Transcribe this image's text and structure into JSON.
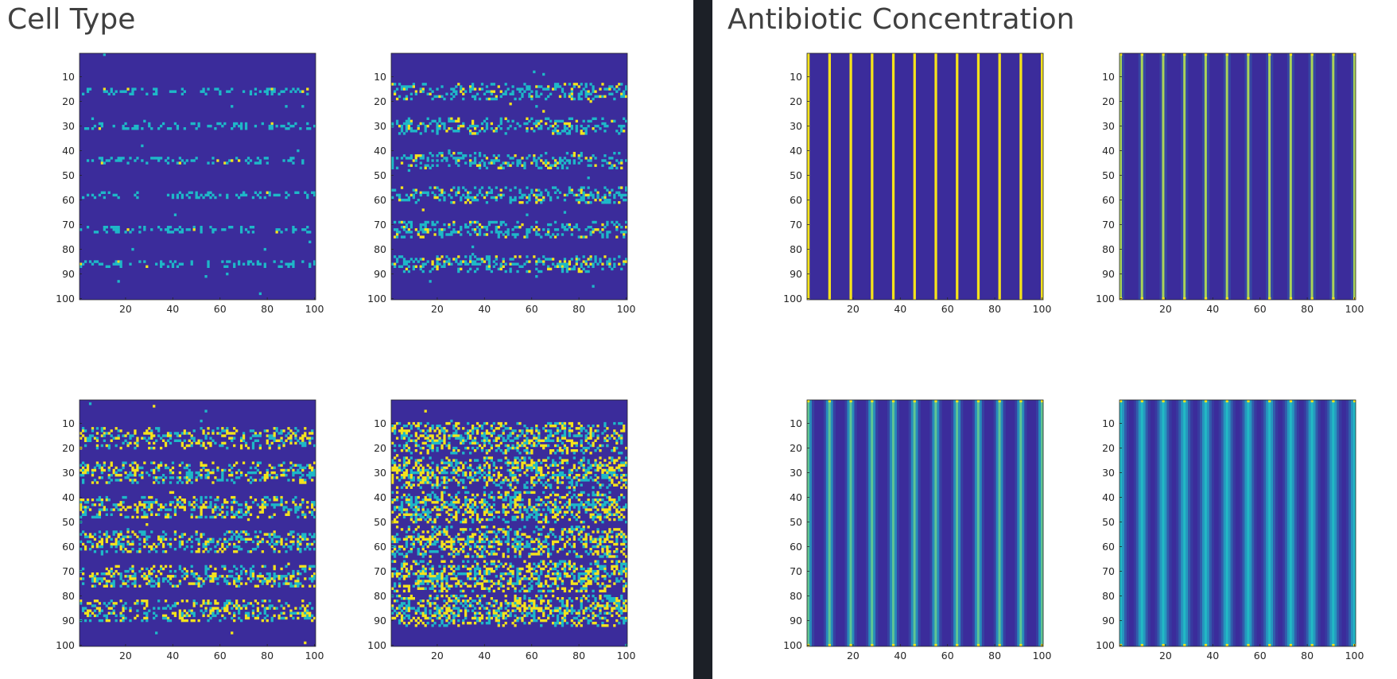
{
  "panels": [
    {
      "title": "Cell Type"
    },
    {
      "title": "Antibiotic Concentration"
    }
  ],
  "colors": {
    "background_cell": "#3b2c9b",
    "cyan_cell": "#1eb8c8",
    "yellow_cell": "#f5e31c",
    "divider": "#1c2027"
  },
  "chart_data": [
    {
      "type": "heatmap",
      "panel": "Cell Type",
      "position": "top-left",
      "grid": [
        100,
        100
      ],
      "xlim": [
        1,
        100
      ],
      "ylim": [
        1,
        100
      ],
      "y_reversed": true,
      "xticks": [
        20,
        40,
        60,
        80,
        100
      ],
      "yticks": [
        10,
        20,
        30,
        40,
        50,
        60,
        70,
        80,
        90,
        100
      ],
      "band_rows": [
        16,
        30,
        44,
        58,
        72,
        86
      ],
      "band_halfwidth": 1,
      "density": 0.3,
      "yellow_fraction": 0.05
    },
    {
      "type": "heatmap",
      "panel": "Cell Type",
      "position": "top-right",
      "grid": [
        100,
        100
      ],
      "xlim": [
        1,
        100
      ],
      "ylim": [
        1,
        100
      ],
      "y_reversed": true,
      "xticks": [
        20,
        40,
        60,
        80,
        100
      ],
      "yticks": [
        10,
        20,
        30,
        40,
        50,
        60,
        70,
        80,
        90,
        100
      ],
      "band_rows": [
        16,
        30,
        44,
        58,
        72,
        86
      ],
      "band_halfwidth": 3,
      "density": 0.4,
      "yellow_fraction": 0.25
    },
    {
      "type": "heatmap",
      "panel": "Cell Type",
      "position": "bottom-left",
      "grid": [
        100,
        100
      ],
      "xlim": [
        1,
        100
      ],
      "ylim": [
        1,
        100
      ],
      "y_reversed": true,
      "xticks": [
        20,
        40,
        60,
        80,
        100
      ],
      "yticks": [
        10,
        20,
        30,
        40,
        50,
        60,
        70,
        80,
        90,
        100
      ],
      "band_rows": [
        16,
        30,
        44,
        58,
        72,
        86
      ],
      "band_halfwidth": 4,
      "density": 0.45,
      "yellow_fraction": 0.45
    },
    {
      "type": "heatmap",
      "panel": "Cell Type",
      "position": "bottom-right",
      "grid": [
        100,
        100
      ],
      "xlim": [
        1,
        100
      ],
      "ylim": [
        1,
        100
      ],
      "y_reversed": true,
      "xticks": [
        20,
        40,
        60,
        80,
        100
      ],
      "yticks": [
        10,
        20,
        30,
        40,
        50,
        60,
        70,
        80,
        90,
        100
      ],
      "band_rows": [
        16,
        30,
        44,
        58,
        72,
        86
      ],
      "band_halfwidth": 6,
      "density": 0.55,
      "yellow_fraction": 0.5
    },
    {
      "type": "heatmap",
      "panel": "Antibiotic Concentration",
      "position": "top-left",
      "grid": [
        100,
        100
      ],
      "xlim": [
        1,
        100
      ],
      "ylim": [
        1,
        100
      ],
      "y_reversed": true,
      "xticks": [
        20,
        40,
        60,
        80,
        100
      ],
      "yticks": [
        10,
        20,
        30,
        40,
        50,
        60,
        70,
        80,
        90,
        100
      ],
      "stripe_columns": [
        1,
        10,
        19,
        28,
        37,
        46,
        55,
        64,
        73,
        82,
        91,
        100
      ],
      "stripe_spread": 0.0
    },
    {
      "type": "heatmap",
      "panel": "Antibiotic Concentration",
      "position": "top-right",
      "grid": [
        100,
        100
      ],
      "xlim": [
        1,
        100
      ],
      "ylim": [
        1,
        100
      ],
      "y_reversed": true,
      "xticks": [
        20,
        40,
        60,
        80,
        100
      ],
      "yticks": [
        10,
        20,
        30,
        40,
        50,
        60,
        70,
        80,
        90,
        100
      ],
      "stripe_columns": [
        1,
        10,
        19,
        28,
        37,
        46,
        55,
        64,
        73,
        82,
        91,
        100
      ],
      "stripe_spread": 0.5
    },
    {
      "type": "heatmap",
      "panel": "Antibiotic Concentration",
      "position": "bottom-left",
      "grid": [
        100,
        100
      ],
      "xlim": [
        1,
        100
      ],
      "ylim": [
        1,
        100
      ],
      "y_reversed": true,
      "xticks": [
        20,
        40,
        60,
        80,
        100
      ],
      "yticks": [
        10,
        20,
        30,
        40,
        50,
        60,
        70,
        80,
        90,
        100
      ],
      "stripe_columns": [
        1,
        10,
        19,
        28,
        37,
        46,
        55,
        64,
        73,
        82,
        91,
        100
      ],
      "stripe_spread": 1.0
    },
    {
      "type": "heatmap",
      "panel": "Antibiotic Concentration",
      "position": "bottom-right",
      "grid": [
        100,
        100
      ],
      "xlim": [
        1,
        100
      ],
      "ylim": [
        1,
        100
      ],
      "y_reversed": true,
      "xticks": [
        20,
        40,
        60,
        80,
        100
      ],
      "yticks": [
        10,
        20,
        30,
        40,
        50,
        60,
        70,
        80,
        90,
        100
      ],
      "stripe_columns": [
        1,
        10,
        19,
        28,
        37,
        46,
        55,
        64,
        73,
        82,
        91,
        100
      ],
      "stripe_spread": 1.4
    }
  ]
}
